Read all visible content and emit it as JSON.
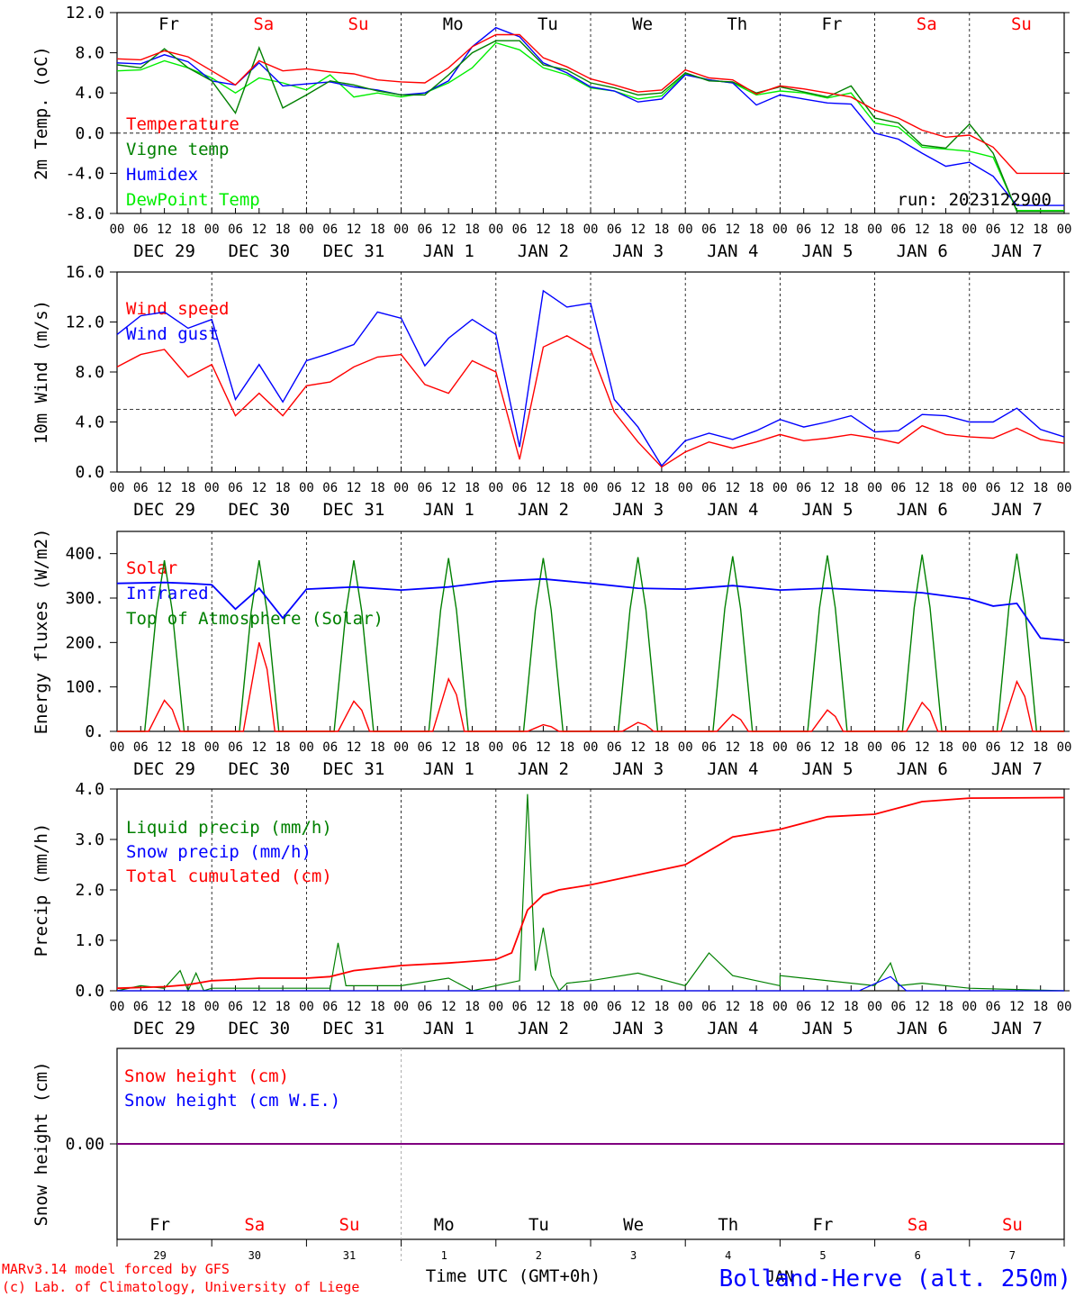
{
  "run_label": "run: 2023122900",
  "footer": {
    "model": "MARv3.14 model forced by GFS",
    "credit": "(c) Lab. of Climatology, University of Liege",
    "xlabel": "Time UTC (GMT+0h)",
    "station": "Bolland-Herve (alt. 250m)",
    "month": "JAN"
  },
  "hour_ticks": [
    "00",
    "06",
    "12",
    "18"
  ],
  "hour_end": "00",
  "date_labels": [
    "DEC 29",
    "DEC 30",
    "DEC 31",
    "JAN  1",
    "JAN  2",
    "JAN  3",
    "JAN  4",
    "JAN  5",
    "JAN  6",
    "JAN  7"
  ],
  "day_names": [
    {
      "label": "Fr",
      "weekend": false
    },
    {
      "label": "Sa",
      "weekend": true
    },
    {
      "label": "Su",
      "weekend": true
    },
    {
      "label": "Mo",
      "weekend": false
    },
    {
      "label": "Tu",
      "weekend": false
    },
    {
      "label": "We",
      "weekend": false
    },
    {
      "label": "Th",
      "weekend": false
    },
    {
      "label": "Fr",
      "weekend": false
    },
    {
      "label": "Sa",
      "weekend": true
    },
    {
      "label": "Su",
      "weekend": true
    }
  ],
  "day_numbers": [
    "29",
    "30",
    "31",
    "1",
    "2",
    "3",
    "4",
    "5",
    "6",
    "7"
  ],
  "colors": {
    "red": "#ff0000",
    "green": "#008000",
    "blue": "#0000ff",
    "lightgreen": "#00ee00",
    "purple": "#800080",
    "weekend": "#ff0000"
  },
  "chart_data": [
    {
      "type": "line",
      "ylabel": "2m Temp. (oC)",
      "ylim": [
        -8,
        12
      ],
      "yticks": [
        "12.0",
        "8.0",
        "4.0",
        "0.0",
        "-4.0",
        "-8.0"
      ],
      "ref_line": 0,
      "x_hours": [
        0,
        6,
        12,
        18,
        24,
        30,
        36,
        42,
        48,
        54,
        60,
        66,
        72,
        78,
        84,
        90,
        96,
        102,
        108,
        114,
        120,
        126,
        132,
        138,
        144,
        150,
        156,
        162,
        168,
        174,
        180,
        186,
        192,
        198,
        204,
        210,
        216,
        222,
        228,
        234,
        240
      ],
      "series": [
        {
          "name": "Temperature",
          "color": "red",
          "values": [
            7.4,
            7.3,
            8.2,
            7.6,
            6.2,
            4.8,
            7.2,
            6.2,
            6.4,
            6.1,
            5.9,
            5.3,
            5.1,
            5.0,
            6.5,
            8.6,
            9.8,
            9.8,
            7.5,
            6.6,
            5.4,
            4.8,
            4.1,
            4.3,
            6.3,
            5.5,
            5.3,
            3.9,
            4.7,
            4.4,
            4.0,
            3.6,
            2.3,
            1.5,
            0.3,
            -0.4,
            -0.2,
            -1.4,
            -4.0,
            -4.0,
            -4.0
          ]
        },
        {
          "name": "Vigne temp",
          "color": "green",
          "values": [
            6.8,
            6.5,
            8.4,
            6.5,
            5.2,
            2.0,
            8.5,
            2.5,
            3.8,
            5.2,
            4.8,
            4.2,
            3.8,
            3.8,
            5.8,
            8.0,
            9.2,
            9.2,
            6.8,
            6.3,
            5.0,
            4.5,
            3.8,
            4.0,
            6.0,
            5.2,
            5.1,
            4.0,
            4.6,
            4.1,
            3.6,
            4.7,
            1.5,
            1.0,
            -1.2,
            -1.5,
            0.9,
            -2.0,
            -7.8,
            -7.8,
            -7.8
          ]
        },
        {
          "name": "Humidex",
          "color": "blue",
          "values": [
            7.0,
            6.9,
            7.8,
            7.1,
            5.2,
            4.8,
            7.0,
            4.7,
            4.9,
            5.1,
            4.6,
            4.3,
            3.8,
            4.0,
            5.2,
            8.6,
            10.5,
            9.6,
            7.0,
            6.0,
            4.6,
            4.2,
            3.1,
            3.4,
            5.8,
            5.3,
            5.0,
            2.8,
            3.8,
            3.4,
            3.0,
            2.9,
            0.0,
            -0.6,
            -2.0,
            -3.3,
            -2.9,
            -4.3,
            -7.2,
            -7.2,
            -7.2
          ]
        },
        {
          "name": "DewPoint Temp",
          "color": "lightgreen",
          "values": [
            6.2,
            6.3,
            7.2,
            6.5,
            5.5,
            4.0,
            5.5,
            5.0,
            4.3,
            5.8,
            3.6,
            4.0,
            3.6,
            4.0,
            5.0,
            6.5,
            9.0,
            8.3,
            6.5,
            5.8,
            4.5,
            4.2,
            3.4,
            3.7,
            5.9,
            5.3,
            5.0,
            3.8,
            4.2,
            4.0,
            3.5,
            4.0,
            1.0,
            0.6,
            -1.4,
            -1.6,
            -1.8,
            -2.4,
            -7.7,
            -7.7,
            -7.7
          ]
        }
      ]
    },
    {
      "type": "line",
      "ylabel": "10m Wind (m/s)",
      "ylim": [
        0,
        16
      ],
      "yticks": [
        "16.0",
        "12.0",
        "8.0",
        "4.0",
        "0.0"
      ],
      "ref_line": 5,
      "x_hours": [
        0,
        6,
        12,
        18,
        24,
        30,
        36,
        42,
        48,
        54,
        60,
        66,
        72,
        78,
        84,
        90,
        96,
        102,
        108,
        114,
        120,
        126,
        132,
        138,
        144,
        150,
        156,
        162,
        168,
        174,
        180,
        186,
        192,
        198,
        204,
        210,
        216,
        222,
        228,
        234,
        240
      ],
      "series": [
        {
          "name": "Wind speed",
          "color": "red",
          "values": [
            8.4,
            9.4,
            9.8,
            7.6,
            8.6,
            4.5,
            6.3,
            4.5,
            6.9,
            7.2,
            8.4,
            9.2,
            9.4,
            7.0,
            6.3,
            8.9,
            8.0,
            1.0,
            10.0,
            10.9,
            9.8,
            4.8,
            2.4,
            0.4,
            1.6,
            2.4,
            1.9,
            2.4,
            3.0,
            2.5,
            2.7,
            3.0,
            2.7,
            2.3,
            3.7,
            3.0,
            2.8,
            2.7,
            3.5,
            2.6,
            2.3
          ]
        },
        {
          "name": "Wind gust",
          "color": "blue",
          "values": [
            11.0,
            12.5,
            12.8,
            11.5,
            12.2,
            5.8,
            8.6,
            5.6,
            8.9,
            9.5,
            10.2,
            12.8,
            12.3,
            8.5,
            10.7,
            12.2,
            11.0,
            2.0,
            14.5,
            13.2,
            13.5,
            5.8,
            3.6,
            0.5,
            2.5,
            3.1,
            2.6,
            3.3,
            4.2,
            3.6,
            4.0,
            4.5,
            3.2,
            3.3,
            4.6,
            4.5,
            4.0,
            4.0,
            5.1,
            3.4,
            2.8
          ]
        }
      ]
    },
    {
      "type": "line",
      "ylabel": "Energy fluxes (W/m2)",
      "ylim": [
        0,
        450
      ],
      "yticks": [
        "400.",
        "300.",
        "200.",
        "100.",
        "0."
      ],
      "day_peaks": {
        "Solar": [
          70,
          200,
          68,
          118,
          15,
          20,
          38,
          48,
          65,
          112
        ],
        "Top of Atmosphere (Solar)": [
          385,
          385,
          385,
          390,
          390,
          392,
          394,
          396,
          398,
          400
        ]
      },
      "series": [
        {
          "name": "Solar",
          "color": "red"
        },
        {
          "name": "Infrared",
          "color": "blue",
          "x_hours": [
            0,
            12,
            18,
            24,
            30,
            36,
            42,
            48,
            60,
            72,
            84,
            96,
            108,
            120,
            132,
            144,
            156,
            168,
            180,
            192,
            204,
            216,
            222,
            228,
            234,
            240
          ],
          "values": [
            333,
            335,
            333,
            330,
            275,
            322,
            255,
            320,
            325,
            318,
            325,
            338,
            343,
            333,
            322,
            320,
            328,
            318,
            322,
            317,
            312,
            298,
            282,
            288,
            210,
            205
          ]
        },
        {
          "name": "Top of Atmosphere (Solar)",
          "color": "green"
        }
      ]
    },
    {
      "type": "line",
      "ylabel": "Precip (mm/h)",
      "ylim": [
        0,
        4
      ],
      "yticks": [
        "4.0",
        "3.0",
        "2.0",
        "1.0",
        "0.0"
      ],
      "series": [
        {
          "name": "Liquid precip (mm/h)",
          "color": "green",
          "x_hours": [
            0,
            6,
            12,
            16,
            18,
            20,
            22,
            24,
            36,
            54,
            56,
            58,
            72,
            84,
            90,
            102,
            104,
            106,
            108,
            110,
            112,
            114,
            120,
            132,
            144,
            150,
            156,
            168,
            168,
            192,
            196,
            198,
            204,
            216,
            240
          ],
          "values": [
            0,
            0.1,
            0.05,
            0.4,
            0,
            0.35,
            0,
            0.05,
            0.05,
            0.05,
            0.95,
            0.1,
            0.1,
            0.25,
            0,
            0.2,
            3.9,
            0.4,
            1.25,
            0.3,
            0,
            0.15,
            0.2,
            0.35,
            0.1,
            0.75,
            0.3,
            0.1,
            0.3,
            0.1,
            0.55,
            0.1,
            0.15,
            0.05,
            0
          ]
        },
        {
          "name": "Snow precip (mm/h)",
          "color": "blue",
          "x_hours": [
            0,
            188,
            196,
            200,
            240
          ],
          "values": [
            0,
            0,
            0.28,
            0,
            0
          ]
        },
        {
          "name": "Total cumulated (cm)",
          "color": "red",
          "x_hours": [
            0,
            12,
            18,
            24,
            30,
            36,
            48,
            54,
            60,
            72,
            84,
            96,
            100,
            104,
            108,
            112,
            120,
            132,
            144,
            156,
            168,
            180,
            192,
            204,
            216,
            240
          ],
          "values": [
            0.05,
            0.08,
            0.12,
            0.2,
            0.22,
            0.25,
            0.25,
            0.28,
            0.4,
            0.5,
            0.55,
            0.62,
            0.75,
            1.6,
            1.9,
            2.0,
            2.1,
            2.3,
            2.5,
            3.05,
            3.2,
            3.45,
            3.5,
            3.75,
            3.82,
            3.83
          ]
        }
      ]
    },
    {
      "type": "line",
      "ylabel": "Snow height (cm)",
      "ytick": "0.00",
      "series": [
        {
          "name": "Snow height (cm)",
          "color": "red",
          "values": [
            0,
            0
          ]
        },
        {
          "name": "Snow height (cm W.E.)",
          "color": "blue",
          "values": [
            0,
            0
          ]
        }
      ]
    }
  ]
}
